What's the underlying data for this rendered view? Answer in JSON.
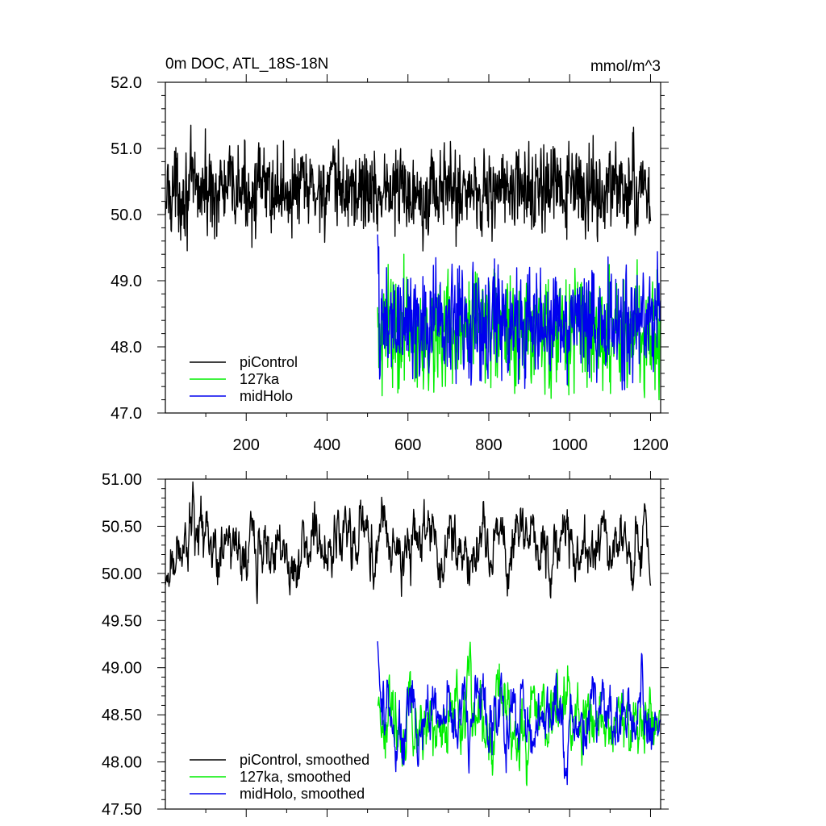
{
  "chart_data": [
    {
      "type": "line",
      "title": "0m DOC, ATL_18S-18N",
      "units": "mmol/m^3",
      "xlim": [
        0,
        1225
      ],
      "ylim": [
        47.0,
        52.0
      ],
      "xticks": [
        200,
        400,
        600,
        800,
        1000,
        1200
      ],
      "xtick_labels": [
        "200",
        "400",
        "600",
        "800",
        "1000",
        "1200"
      ],
      "yticks": [
        47.0,
        48.0,
        49.0,
        50.0,
        51.0,
        52.0
      ],
      "ytick_labels": [
        "47.0",
        "48.0",
        "49.0",
        "50.0",
        "51.0",
        "52.0"
      ],
      "legend": "bottom-left",
      "grid": false,
      "series": [
        {
          "name": "piControl",
          "color": "#000000",
          "x_range": [
            0,
            1200
          ],
          "mean": 50.3,
          "noise": 0.32,
          "start": 50.0,
          "end": 49.9,
          "low": 49.45,
          "high": 51.35
        },
        {
          "name": "127ka",
          "color": "#00ee00",
          "x_range": [
            525,
            1225
          ],
          "mean": 48.45,
          "noise": 0.38,
          "start": 48.6,
          "end": 48.4,
          "low": 47.2,
          "high": 49.4
        },
        {
          "name": "midHolo",
          "color": "#0000ee",
          "x_range": [
            525,
            1225
          ],
          "mean": 48.45,
          "noise": 0.38,
          "start": 49.7,
          "end": 48.7,
          "low": 47.35,
          "high": 49.45
        }
      ]
    },
    {
      "type": "line",
      "title": "",
      "xlim": [
        0,
        1225
      ],
      "ylim": [
        47.5,
        51.0
      ],
      "xticks": [
        200,
        400,
        600,
        800,
        1000,
        1200
      ],
      "yticks": [
        47.5,
        48.0,
        48.5,
        49.0,
        49.5,
        50.0,
        50.5,
        51.0
      ],
      "ytick_labels": [
        "47.50",
        "48.00",
        "48.50",
        "49.00",
        "49.50",
        "50.00",
        "50.50",
        "51.00"
      ],
      "legend": "bottom-left",
      "grid": false,
      "series": [
        {
          "name": "piControl, smoothed",
          "color": "#000000",
          "x_range": [
            0,
            1200
          ],
          "mean": 50.35,
          "noise": 0.18,
          "start": 49.88,
          "end": 49.87,
          "low": 49.68,
          "high": 50.97
        },
        {
          "name": "127ka, smoothed",
          "color": "#00ee00",
          "x_range": [
            525,
            1225
          ],
          "mean": 48.45,
          "noise": 0.22,
          "start": 48.6,
          "end": 48.55,
          "low": 47.75,
          "high": 49.27
        },
        {
          "name": "midHolo, smoothed",
          "color": "#0000ee",
          "x_range": [
            525,
            1225
          ],
          "mean": 48.45,
          "noise": 0.22,
          "start": 49.28,
          "end": 48.45,
          "low": 47.76,
          "high": 49.15
        }
      ]
    }
  ]
}
